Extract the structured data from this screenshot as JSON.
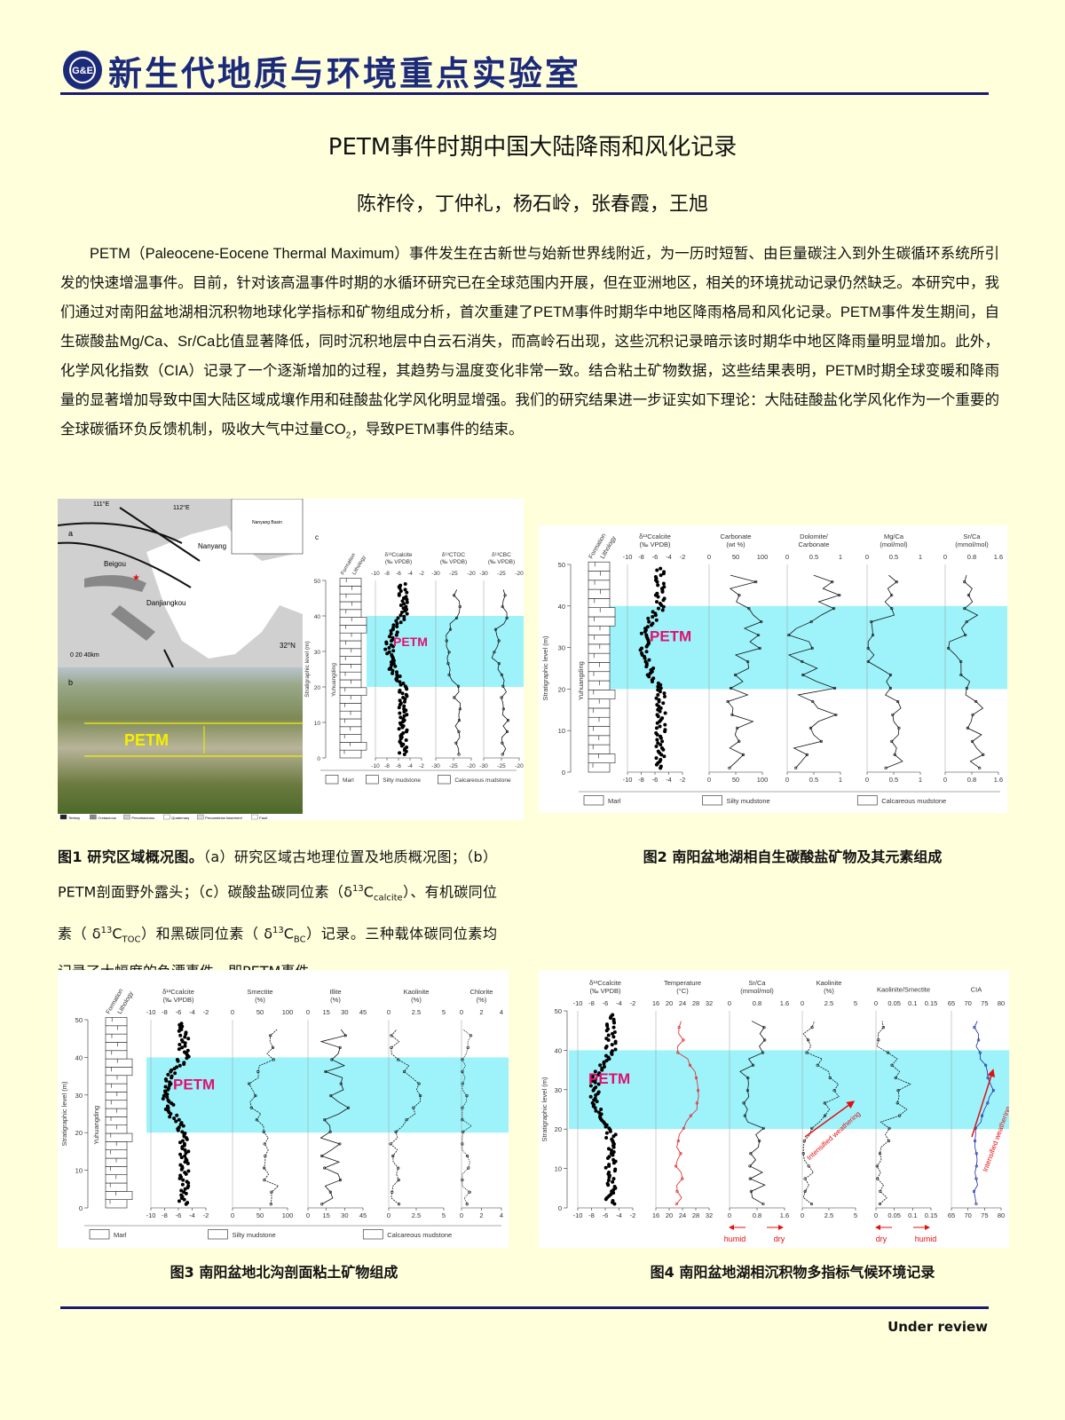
{
  "header": {
    "lab_name": "新生代地质与环境重点实验室",
    "logo_text": "G&E"
  },
  "title": "PETM事件时期中国大陆降雨和风化记录",
  "authors": "陈祚伶，丁仲礼，杨石岭，张春霞，王旭",
  "abstract": {
    "part1": "PETM（Paleocene-Eocene Thermal Maximum）事件发生在古新世与始新世界线附近，为一历时短暂、由巨量碳注入到外生碳循环系统所引发的快速增温事件。目前，针对该高温事件时期的水循环研究已在全球范围内开展，但在亚洲地区，相关的环境扰动记录仍然缺乏。本研究中，我们通过对南阳盆地湖相沉积物地球化学指标和矿物组成分析，首次重建了PETM事件时期华中地区降雨格局和风化记录。PETM事件发生期间，自生碳酸盐Mg/Ca、Sr/Ca比值显著降低，同时沉积地层中白云石消失，而高岭石出现，这些沉积记录暗示该时期华中地区降雨量明显增加。此外，化学风化指数（CIA）记录了一个逐渐增加的过程，其趋势与温度变化非常一致。结合粘土矿物数据，这些结果表明，PETM时期全球变暖和降雨量的显著增加导致中国大陆区域成壤作用和硅酸盐化学风化明显增强。我们的研究结果进一步证实如下理论：大陆硅酸盐化学风化作为一个重要的全球碳循环负反馈机制，吸收大气中过量CO",
    "sub": "2",
    "part2": "，导致PETM事件的结束。"
  },
  "fig1": {
    "map_labels": {
      "a": "a",
      "b": "b",
      "c": "c",
      "lon1": "111°E",
      "lon2": "112°E",
      "lat": "32°N",
      "nanyang": "Nanyang",
      "beigou": "Beigou",
      "danjiangkou": "Danjiangkou",
      "scale": "0   20  40km",
      "inset": "Nanyang Basin"
    },
    "photo_label": "PETM",
    "map_legend": [
      "Tertiary",
      "Cretaceous",
      "Precretaceous",
      "Quaternary",
      "Precambrian basement",
      "Fault"
    ],
    "strat": {
      "ylabel": "Stratigraphic level (m)",
      "formation": "Yuhuangding",
      "col_headers": [
        "Formation",
        "Lithology"
      ],
      "yticks": [
        "0",
        "10",
        "20",
        "30",
        "40",
        "50"
      ],
      "panels": [
        {
          "title": "δ¹³Ccalcite (‰ VPDB)",
          "ticks": [
            "-10",
            "-8",
            "-6",
            "-4",
            "-2"
          ]
        },
        {
          "title": "δ¹³CTOC (‰ VPDB)",
          "ticks": [
            "-30",
            "-25",
            "-20"
          ]
        },
        {
          "title": "δ¹³CBC (‰ VPDB)",
          "ticks": [
            "-30",
            "-25",
            "-20"
          ]
        }
      ],
      "petm": "PETM",
      "legend": [
        "Marl",
        "Silty mudstone",
        "Calcareous mudstone"
      ]
    }
  },
  "fig1_caption": {
    "bold": "图1 研究区域概况图。",
    "t1": "（a）研究区域古地理位置及地质概况图；（b）PETM剖面野外露头；（c）碳酸盐碳同位素（δ",
    "sup1": "13",
    "c1": "C",
    "sub1": "calcite",
    "t2": "）、有机碳同位素（ δ",
    "sup2": "13",
    "c2": "C",
    "sub2": "TOC",
    "t3": "）和黑碳同位素（ δ",
    "sup3": "13",
    "c3": "C",
    "sub3": "BC",
    "t4": "）记录。三种载体碳同位素均记录了大幅度的负漂事件，即PETM事件。"
  },
  "fig2": {
    "ylabel": "Stratigraphic level (m)",
    "formation": "Yuhuangding",
    "col_headers": [
      "Formation",
      "Lithology"
    ],
    "yticks": [
      "0",
      "10",
      "20",
      "30",
      "40",
      "50"
    ],
    "panels": [
      {
        "title": "δ¹³Ccalcite (‰ VPDB)",
        "ticks": [
          "-10",
          "-8",
          "-6",
          "-4",
          "-2"
        ]
      },
      {
        "title": "Carbonate (wt %)",
        "ticks": [
          "0",
          "50",
          "100"
        ]
      },
      {
        "title": "Dolomite/ Carbonate",
        "ticks": [
          "0",
          "0.5",
          "1"
        ]
      },
      {
        "title": "Mg/Ca (mol/mol)",
        "ticks": [
          "0",
          "0.5",
          "1"
        ]
      },
      {
        "title": "Sr/Ca (mmol/mol)",
        "ticks": [
          "0",
          "0.8",
          "1.6"
        ]
      }
    ],
    "petm": "PETM",
    "legend": [
      "Marl",
      "Silty mudstone",
      "Calcareous mudstone"
    ]
  },
  "fig2_caption": "图2 南阳盆地湖相自生碳酸盐矿物及其元素组成",
  "fig3": {
    "ylabel": "Stratigraphic level (m)",
    "formation": "Yuhuangding",
    "col_headers": [
      "Formation",
      "Lithology"
    ],
    "yticks": [
      "0",
      "10",
      "20",
      "30",
      "40",
      "50"
    ],
    "panels": [
      {
        "title": "δ¹³Ccalcite (‰ VPDB)",
        "ticks": [
          "-10",
          "-8",
          "-6",
          "-4",
          "-2"
        ]
      },
      {
        "title": "Smectite (%)",
        "ticks": [
          "0",
          "50",
          "100"
        ]
      },
      {
        "title": "Illite (%)",
        "ticks": [
          "0",
          "15",
          "30",
          "45"
        ]
      },
      {
        "title": "Kaolinite (%)",
        "ticks": [
          "0",
          "2.5",
          "5"
        ]
      },
      {
        "title": "Chlorite (%)",
        "ticks": [
          "0",
          "2",
          "4"
        ]
      }
    ],
    "petm": "PETM",
    "legend": [
      "Marl",
      "Silty mudstone",
      "Calcareous mudstone"
    ]
  },
  "fig3_caption": "图3 南阳盆地北沟剖面粘土矿物组成",
  "fig4": {
    "ylabel": "Stratigraphic level (m)",
    "yticks": [
      "0",
      "10",
      "20",
      "30",
      "40",
      "50"
    ],
    "panels": [
      {
        "title": "δ¹³Ccalcite (‰ VPDB)",
        "ticks": [
          "-10",
          "-8",
          "-6",
          "-4",
          "-2"
        ]
      },
      {
        "title": "Temperature (°C)",
        "ticks": [
          "16",
          "20",
          "24",
          "28",
          "32"
        ]
      },
      {
        "title": "Sr/Ca (mmol/mol)",
        "ticks": [
          "0",
          "0.8",
          "1.6"
        ]
      },
      {
        "title": "Kaolinite (%)",
        "ticks": [
          "0",
          "2.5",
          "5"
        ]
      },
      {
        "title": "Kaolinite/Smectite",
        "ticks": [
          "0",
          "0.05",
          "0.1",
          "0.15"
        ]
      },
      {
        "title": "CIA",
        "ticks": [
          "65",
          "70",
          "75",
          "80"
        ]
      }
    ],
    "petm": "PETM",
    "annotation": "Intensified weathering",
    "arrows": [
      {
        "left": "humid",
        "right": "dry"
      },
      {
        "left": "dry",
        "right": "humid"
      }
    ],
    "colors": {
      "temperature": "#e02020",
      "cia": "#1a2aa0",
      "arrow": "#e01010"
    }
  },
  "fig4_caption": "图4 南阳盆地湖相沉积物多指标气候环境记录",
  "footer": {
    "status": "Under review"
  },
  "colors": {
    "petm_band": "#9ef3fb",
    "petm_text": "#e0106e",
    "navy": "#1a1a6e",
    "background": "#ffffdc"
  }
}
